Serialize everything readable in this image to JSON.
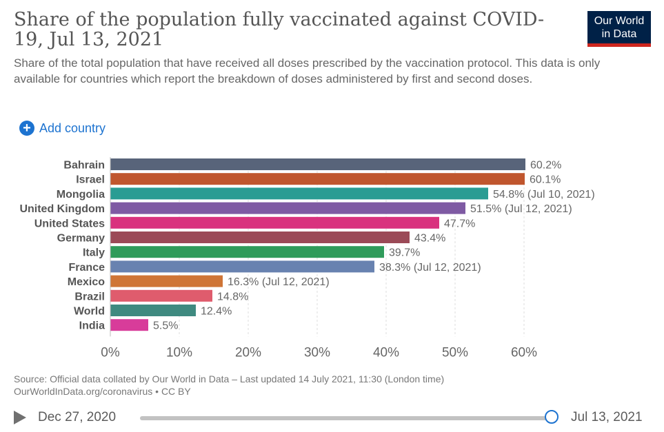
{
  "header": {
    "title": "Share of the population fully vaccinated against COVID-19, Jul 13, 2021",
    "subtitle": "Share of the total population that have received all doses prescribed by the vaccination protocol. This data is only available for countries which report the breakdown of doses administered by first and second doses.",
    "logo_line1": "Our World",
    "logo_line2": "in Data"
  },
  "controls": {
    "add_country_label": "Add country"
  },
  "chart_data": {
    "type": "bar",
    "orientation": "horizontal",
    "categories": [
      "Bahrain",
      "Israel",
      "Mongolia",
      "United Kingdom",
      "United States",
      "Germany",
      "Italy",
      "France",
      "Mexico",
      "Brazil",
      "World",
      "India"
    ],
    "values": [
      60.2,
      60.1,
      54.8,
      51.5,
      47.7,
      43.4,
      39.7,
      38.3,
      16.3,
      14.8,
      12.4,
      5.5
    ],
    "value_labels": [
      "60.2%",
      "60.1%",
      "54.8% (Jul 10, 2021)",
      "51.5% (Jul 12, 2021)",
      "47.7%",
      "43.4%",
      "39.7%",
      "38.3% (Jul 12, 2021)",
      "16.3% (Jul 12, 2021)",
      "14.8%",
      "12.4%",
      "5.5%"
    ],
    "colors": [
      "#58647a",
      "#c0562e",
      "#2a9c93",
      "#7e5aa3",
      "#d9327e",
      "#9b4a57",
      "#2f9b5a",
      "#6882b0",
      "#cf7536",
      "#df5c6d",
      "#3f8a80",
      "#d83c9a"
    ],
    "xlim": [
      0,
      60
    ],
    "xticks": [
      0,
      10,
      20,
      30,
      40,
      50,
      60
    ],
    "xtick_labels": [
      "0%",
      "10%",
      "20%",
      "30%",
      "40%",
      "50%",
      "60%"
    ],
    "grid": true
  },
  "footer": {
    "source": "Source: Official data collated by Our World in Data – Last updated 14 July 2021, 11:30 (London time)",
    "url_license": "OurWorldInData.org/coronavirus • CC BY"
  },
  "timeline": {
    "start_label": "Dec 27, 2020",
    "end_label": "Jul 13, 2021",
    "position": 1.0
  }
}
